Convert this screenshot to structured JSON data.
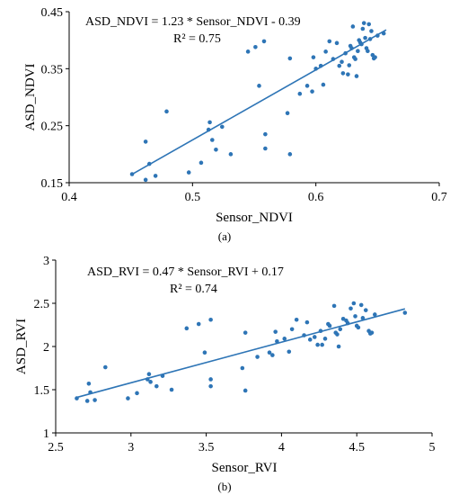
{
  "chart_data": [
    {
      "type": "scatter",
      "panel_label": "(a)",
      "xlabel": "Sensor_NDVI",
      "ylabel": "ASD_NDVI",
      "xlim": [
        0.4,
        0.7
      ],
      "ylim": [
        0.15,
        0.45
      ],
      "xticks": [
        "0.4",
        "0.5",
        "0.6",
        "0.7"
      ],
      "yticks": [
        "0.15",
        "0.25",
        "0.35",
        "0.45"
      ],
      "equation": "ASD_NDVI = 1.23 * Sensor_NDVI - 0.39",
      "r2": "R² = 0.75",
      "trendline": {
        "slope": 1.23,
        "intercept": -0.39,
        "x_range": [
          0.45,
          0.657
        ]
      },
      "point_color": "#2e75b6",
      "points": [
        [
          0.451,
          0.165
        ],
        [
          0.462,
          0.155
        ],
        [
          0.462,
          0.222
        ],
        [
          0.465,
          0.183
        ],
        [
          0.47,
          0.162
        ],
        [
          0.479,
          0.275
        ],
        [
          0.497,
          0.168
        ],
        [
          0.507,
          0.185
        ],
        [
          0.513,
          0.243
        ],
        [
          0.514,
          0.256
        ],
        [
          0.516,
          0.225
        ],
        [
          0.519,
          0.208
        ],
        [
          0.524,
          0.248
        ],
        [
          0.531,
          0.2
        ],
        [
          0.545,
          0.38
        ],
        [
          0.551,
          0.388
        ],
        [
          0.554,
          0.32
        ],
        [
          0.558,
          0.398
        ],
        [
          0.559,
          0.235
        ],
        [
          0.559,
          0.21
        ],
        [
          0.577,
          0.272
        ],
        [
          0.579,
          0.368
        ],
        [
          0.579,
          0.2
        ],
        [
          0.587,
          0.306
        ],
        [
          0.593,
          0.32
        ],
        [
          0.597,
          0.31
        ],
        [
          0.598,
          0.37
        ],
        [
          0.6,
          0.35
        ],
        [
          0.604,
          0.355
        ],
        [
          0.606,
          0.322
        ],
        [
          0.608,
          0.38
        ],
        [
          0.611,
          0.398
        ],
        [
          0.614,
          0.367
        ],
        [
          0.617,
          0.395
        ],
        [
          0.619,
          0.355
        ],
        [
          0.621,
          0.362
        ],
        [
          0.622,
          0.342
        ],
        [
          0.624,
          0.377
        ],
        [
          0.626,
          0.34
        ],
        [
          0.627,
          0.356
        ],
        [
          0.628,
          0.39
        ],
        [
          0.629,
          0.386
        ],
        [
          0.63,
          0.424
        ],
        [
          0.631,
          0.37
        ],
        [
          0.632,
          0.367
        ],
        [
          0.633,
          0.337
        ],
        [
          0.634,
          0.381
        ],
        [
          0.635,
          0.4
        ],
        [
          0.636,
          0.396
        ],
        [
          0.637,
          0.393
        ],
        [
          0.638,
          0.42
        ],
        [
          0.639,
          0.43
        ],
        [
          0.64,
          0.404
        ],
        [
          0.641,
          0.386
        ],
        [
          0.642,
          0.381
        ],
        [
          0.643,
          0.428
        ],
        [
          0.644,
          0.402
        ],
        [
          0.645,
          0.416
        ],
        [
          0.646,
          0.374
        ],
        [
          0.647,
          0.368
        ],
        [
          0.648,
          0.37
        ],
        [
          0.65,
          0.408
        ],
        [
          0.655,
          0.412
        ]
      ]
    },
    {
      "type": "scatter",
      "panel_label": "(b)",
      "xlabel": "Sensor_RVI",
      "ylabel": "ASD_RVI",
      "xlim": [
        2.5,
        5
      ],
      "ylim": [
        1,
        3
      ],
      "xticks": [
        "2.5",
        "3",
        "3.5",
        "4",
        "4.5",
        "5"
      ],
      "yticks": [
        "1",
        "1.5",
        "2",
        "2.5",
        "3"
      ],
      "equation": "ASD_RVI = 0.47 * Sensor_RVI + 0.17",
      "r2": "R² = 0.74",
      "trendline": {
        "slope": 0.47,
        "intercept": 0.17,
        "x_range": [
          2.64,
          4.82
        ]
      },
      "point_color": "#2e75b6",
      "points": [
        [
          2.64,
          1.4
        ],
        [
          2.71,
          1.37
        ],
        [
          2.72,
          1.57
        ],
        [
          2.73,
          1.47
        ],
        [
          2.76,
          1.38
        ],
        [
          2.83,
          1.76
        ],
        [
          2.98,
          1.4
        ],
        [
          3.04,
          1.46
        ],
        [
          3.11,
          1.62
        ],
        [
          3.12,
          1.68
        ],
        [
          3.13,
          1.59
        ],
        [
          3.17,
          1.54
        ],
        [
          3.21,
          1.66
        ],
        [
          3.27,
          1.5
        ],
        [
          3.37,
          2.21
        ],
        [
          3.45,
          2.26
        ],
        [
          3.49,
          1.93
        ],
        [
          3.53,
          2.31
        ],
        [
          3.53,
          1.62
        ],
        [
          3.53,
          1.54
        ],
        [
          3.74,
          1.75
        ],
        [
          3.76,
          2.16
        ],
        [
          3.76,
          1.49
        ],
        [
          3.84,
          1.88
        ],
        [
          3.92,
          1.93
        ],
        [
          3.94,
          1.9
        ],
        [
          3.96,
          2.17
        ],
        [
          3.97,
          2.06
        ],
        [
          4.02,
          2.09
        ],
        [
          4.05,
          1.94
        ],
        [
          4.07,
          2.2
        ],
        [
          4.1,
          2.31
        ],
        [
          4.15,
          2.13
        ],
        [
          4.17,
          2.28
        ],
        [
          4.19,
          2.08
        ],
        [
          4.22,
          2.11
        ],
        [
          4.24,
          2.02
        ],
        [
          4.26,
          2.18
        ],
        [
          4.27,
          2.02
        ],
        [
          4.29,
          2.09
        ],
        [
          4.31,
          2.26
        ],
        [
          4.32,
          2.24
        ],
        [
          4.35,
          2.47
        ],
        [
          4.36,
          2.16
        ],
        [
          4.37,
          2.14
        ],
        [
          4.38,
          2.0
        ],
        [
          4.39,
          2.2
        ],
        [
          4.41,
          2.32
        ],
        [
          4.43,
          2.3
        ],
        [
          4.44,
          2.27
        ],
        [
          4.46,
          2.44
        ],
        [
          4.48,
          2.5
        ],
        [
          4.49,
          2.35
        ],
        [
          4.5,
          2.24
        ],
        [
          4.51,
          2.22
        ],
        [
          4.53,
          2.48
        ],
        [
          4.54,
          2.33
        ],
        [
          4.56,
          2.42
        ],
        [
          4.58,
          2.18
        ],
        [
          4.59,
          2.15
        ],
        [
          4.6,
          2.16
        ],
        [
          4.62,
          2.37
        ],
        [
          4.82,
          2.39
        ]
      ]
    }
  ]
}
